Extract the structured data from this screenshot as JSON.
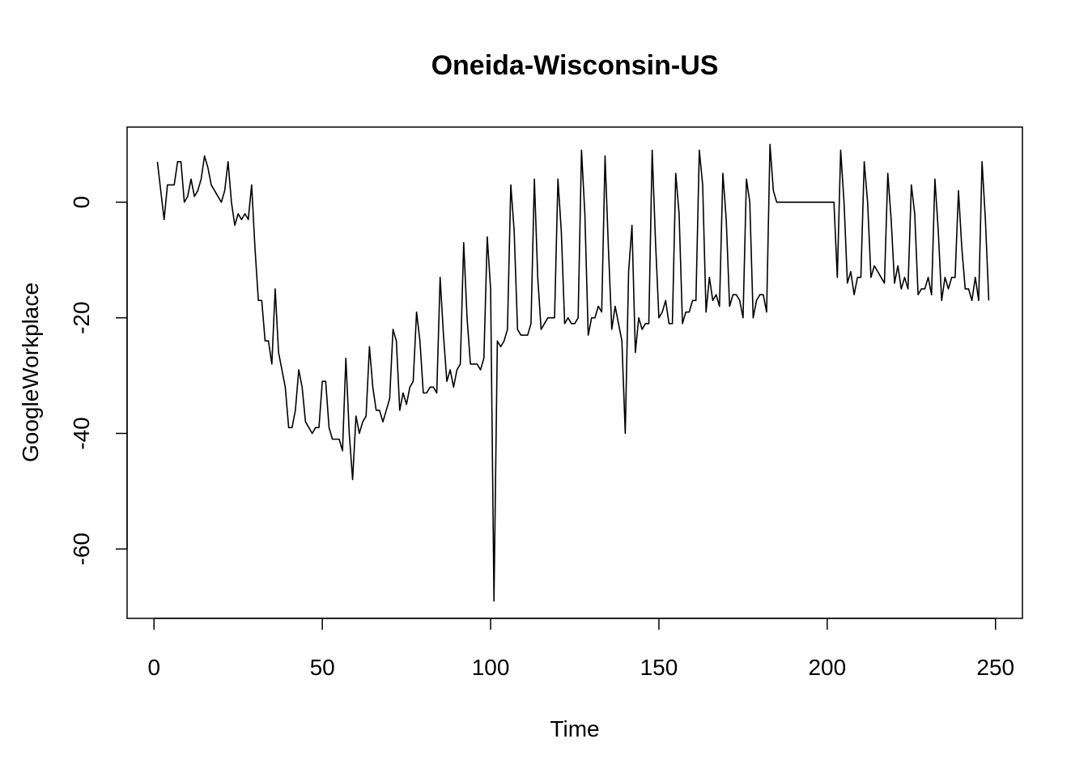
{
  "chart_data": {
    "type": "line",
    "title": "Oneida-Wisconsin-US",
    "xlabel": "Time",
    "ylabel": "GoogleWorkplace",
    "xlim": [
      -8,
      258
    ],
    "ylim": [
      -72,
      13
    ],
    "x_ticks": [
      0,
      50,
      100,
      150,
      200,
      250
    ],
    "x_tick_labels": [
      "0",
      "50",
      "100",
      "150",
      "200",
      "250"
    ],
    "y_ticks": [
      0,
      -20,
      -40,
      -60
    ],
    "y_tick_labels": [
      "0",
      "-20",
      "-40",
      "-60"
    ],
    "grid": false,
    "legend": "none",
    "line_color": "#000000",
    "series": [
      {
        "x": [
          1,
          2,
          3,
          4,
          5,
          6,
          7,
          8,
          9,
          10,
          11,
          12,
          13,
          14,
          15,
          16,
          17,
          18,
          19,
          20,
          21,
          22,
          23,
          24,
          25,
          26,
          27,
          28,
          29,
          30,
          31,
          32,
          33,
          34,
          35,
          36,
          37,
          38,
          39,
          40,
          41,
          42,
          43,
          44,
          45,
          46,
          47,
          48,
          49,
          50,
          51,
          52,
          53,
          54,
          55,
          56,
          57,
          58,
          59,
          60,
          61,
          62,
          63,
          64,
          65,
          66,
          67,
          68,
          69,
          70,
          71,
          72,
          73,
          74,
          75,
          76,
          77,
          78,
          79,
          80,
          81,
          82,
          83,
          84,
          85,
          86,
          87,
          88,
          89,
          90,
          91,
          92,
          93,
          94,
          95,
          96,
          97,
          98,
          99,
          100,
          101,
          102,
          103,
          104,
          105,
          106,
          107,
          108,
          109,
          110,
          111,
          112,
          113,
          114,
          115,
          116,
          117,
          118,
          119,
          120,
          121,
          122,
          123,
          124,
          125,
          126,
          127,
          128,
          129,
          130,
          131,
          132,
          133,
          134,
          135,
          136,
          137,
          138,
          139,
          140,
          141,
          142,
          143,
          144,
          145,
          146,
          147,
          148,
          149,
          150,
          151,
          152,
          153,
          154,
          155,
          156,
          157,
          158,
          159,
          160,
          161,
          162,
          163,
          164,
          165,
          166,
          167,
          168,
          169,
          170,
          171,
          172,
          173,
          174,
          175,
          176,
          177,
          178,
          179,
          180,
          181,
          182,
          183,
          184,
          185,
          186,
          187,
          188,
          189,
          190,
          191,
          192,
          193,
          194,
          195,
          196,
          197,
          198,
          199,
          200,
          201,
          202,
          203,
          204,
          205,
          206,
          207,
          208,
          209,
          210,
          211,
          212,
          213,
          214,
          215,
          216,
          217,
          218,
          219,
          220,
          221,
          222,
          223,
          224,
          225,
          226,
          227,
          228,
          229,
          230,
          231,
          232,
          233,
          234,
          235,
          236,
          237,
          238,
          239,
          240,
          241,
          242,
          243,
          244,
          245,
          246,
          247,
          248
        ],
        "y": [
          7,
          2,
          -3,
          3,
          3,
          3,
          7,
          7,
          0,
          1,
          4,
          1,
          2,
          4,
          8,
          6,
          3,
          2,
          1,
          0,
          2,
          7,
          0,
          -4,
          -2,
          -3,
          -2,
          -3,
          3,
          -8,
          -17,
          -17,
          -24,
          -24,
          -28,
          -15,
          -26,
          -29,
          -32,
          -39,
          -39,
          -36,
          -29,
          -32,
          -38,
          -39,
          -40,
          -39,
          -39,
          -31,
          -31,
          -39,
          -41,
          -41,
          -41,
          -43,
          -27,
          -40,
          -48,
          -37,
          -40,
          -38,
          -37,
          -25,
          -32,
          -36,
          -36,
          -38,
          -36,
          -34,
          -22,
          -24,
          -36,
          -33,
          -35,
          -32,
          -31,
          -19,
          -24,
          -33,
          -33,
          -32,
          -32,
          -33,
          -13,
          -23,
          -31,
          -29,
          -32,
          -29,
          -28,
          -7,
          -20,
          -28,
          -28,
          -28,
          -29,
          -27,
          -6,
          -15,
          -69,
          -24,
          -25,
          -24,
          -22,
          3,
          -5,
          -22,
          -23,
          -23,
          -23,
          -21,
          4,
          -13,
          -22,
          -21,
          -20,
          -20,
          -20,
          4,
          -5,
          -21,
          -20,
          -21,
          -21,
          -20,
          9,
          -2,
          -23,
          -20,
          -20,
          -18,
          -19,
          8,
          -8,
          -22,
          -18,
          -21,
          -24,
          -40,
          -12,
          -4,
          -26,
          -20,
          -22,
          -21,
          -21,
          9,
          -7,
          -20,
          -19,
          -17,
          -21,
          -21,
          5,
          -2,
          -21,
          -19,
          -19,
          -17,
          -17,
          9,
          3,
          -19,
          -13,
          -17,
          -16,
          -18,
          5,
          -3,
          -18,
          -16,
          -16,
          -17,
          -20,
          4,
          0,
          -20,
          -17,
          -16,
          -16,
          -19,
          10,
          2,
          0,
          0,
          0,
          0,
          0,
          0,
          0,
          0,
          0,
          0,
          0,
          0,
          0,
          0,
          0,
          0,
          0,
          0,
          -13,
          9,
          0,
          -14,
          -12,
          -16,
          -13,
          -13,
          7,
          0,
          -13,
          -11,
          -12,
          -13,
          -14,
          5,
          -3,
          -14,
          -11,
          -15,
          -13,
          -15,
          3,
          -2,
          -16,
          -15,
          -15,
          -13,
          -16,
          4,
          -5,
          -17,
          -13,
          -15,
          -13,
          -13,
          2,
          -8,
          -15,
          -15,
          -17,
          -13,
          -17,
          7,
          -3,
          -17
        ]
      }
    ]
  }
}
